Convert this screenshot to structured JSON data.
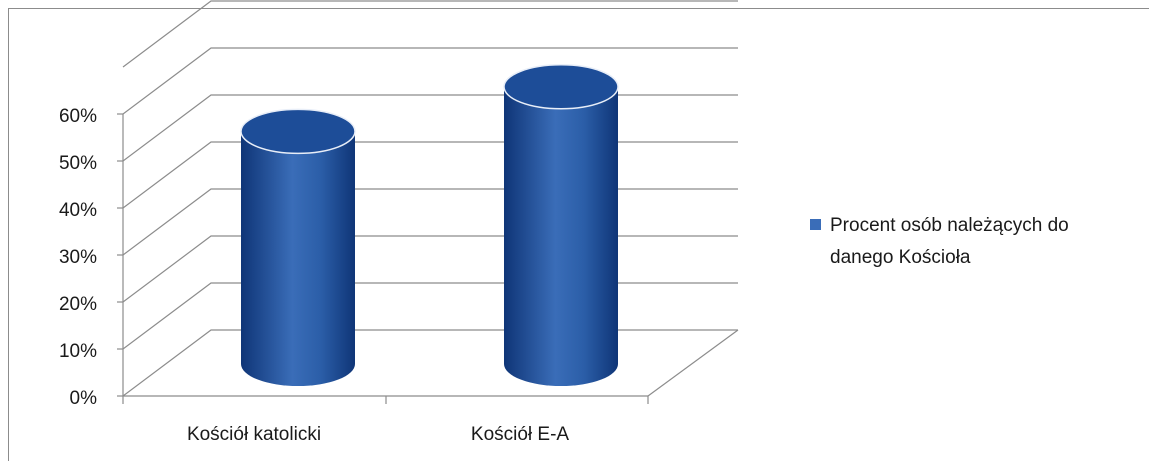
{
  "chart_data": {
    "type": "bar",
    "style": "3d-cylinder",
    "categories": [
      "Kościół katolicki",
      "Kościół E-A"
    ],
    "series": [
      {
        "name": "Procent osób należących do danego Kościoła",
        "values": [
          47,
          56
        ]
      }
    ],
    "ylim": [
      0,
      60
    ],
    "yticks": [
      "0%",
      "10%",
      "20%",
      "30%",
      "40%",
      "50%",
      "60%"
    ],
    "grid": true,
    "legend_position": "right",
    "colors": {
      "series": "#2f5fa8",
      "series_dark": "#143a78",
      "grid": "#8c8c8c"
    }
  },
  "legend": {
    "line1": "Procent osób należących do",
    "line2": "danego Kościoła"
  }
}
